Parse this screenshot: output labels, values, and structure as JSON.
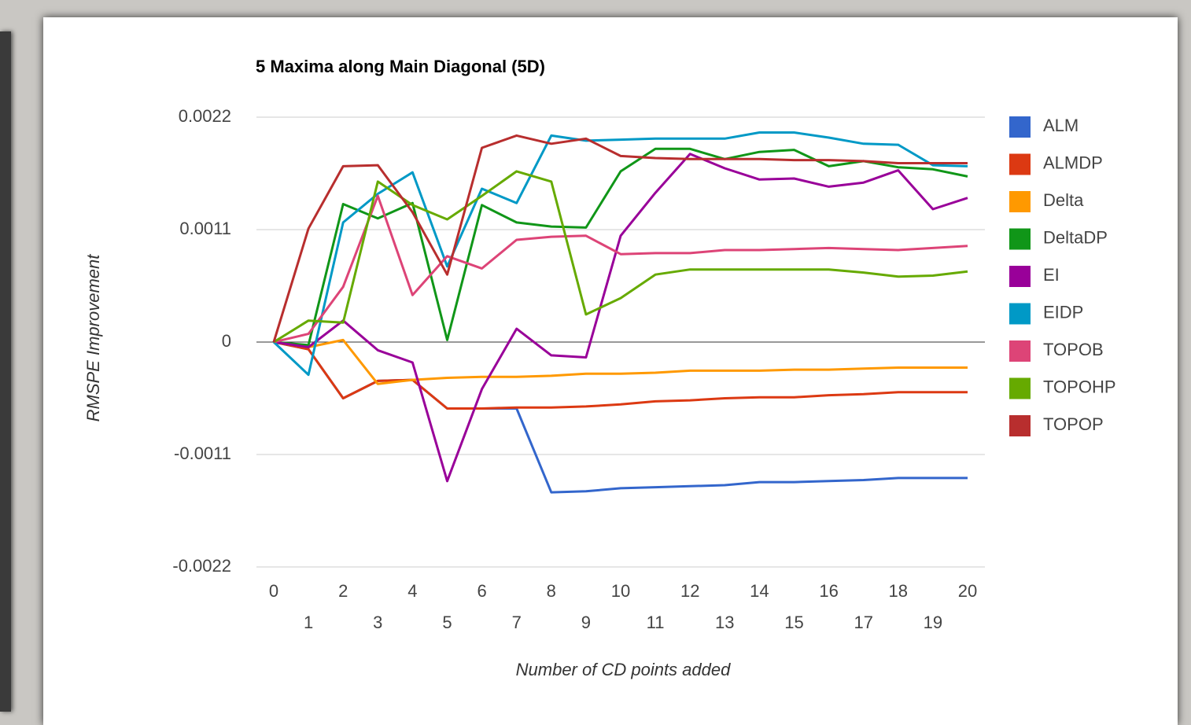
{
  "chart_data": {
    "type": "line",
    "title": "5 Maxima along Main Diagonal (5D)",
    "x_label": "Number of CD points added",
    "y_label": "RMSPE Improvement",
    "x": [
      0,
      1,
      2,
      3,
      4,
      5,
      6,
      7,
      8,
      9,
      10,
      11,
      12,
      13,
      14,
      15,
      16,
      17,
      18,
      19,
      20
    ],
    "xlim": [
      0,
      20
    ],
    "xticks": [
      0,
      1,
      2,
      3,
      4,
      5,
      6,
      7,
      8,
      9,
      10,
      11,
      12,
      13,
      14,
      15,
      16,
      17,
      18,
      19,
      20
    ],
    "ylim": [
      -0.0022,
      0.0022
    ],
    "yticks": [
      0.0022,
      0.0011,
      0,
      -0.0011,
      -0.0022
    ],
    "grid": true,
    "legend": "right",
    "series": [
      {
        "name": "ALM",
        "color": "#3366cc",
        "values": [
          0,
          -7e-05,
          -0.00055,
          -0.00038,
          -0.00037,
          -0.00065,
          -0.00065,
          -0.00065,
          -0.00147,
          -0.00146,
          -0.00143,
          -0.00142,
          -0.00141,
          -0.0014,
          -0.00137,
          -0.00137,
          -0.00136,
          -0.00135,
          -0.00133,
          -0.00133,
          -0.00133
        ]
      },
      {
        "name": "ALMDP",
        "color": "#dc3912",
        "values": [
          0,
          -7e-05,
          -0.00055,
          -0.00038,
          -0.00037,
          -0.00065,
          -0.00065,
          -0.00064,
          -0.00064,
          -0.00063,
          -0.00061,
          -0.00058,
          -0.00057,
          -0.00055,
          -0.00054,
          -0.00054,
          -0.00052,
          -0.00051,
          -0.00049,
          -0.00049,
          -0.00049
        ]
      },
      {
        "name": "Delta",
        "color": "#ff9900",
        "values": [
          0,
          -5e-05,
          2e-05,
          -0.00041,
          -0.00037,
          -0.00035,
          -0.00034,
          -0.00034,
          -0.00033,
          -0.00031,
          -0.00031,
          -0.0003,
          -0.00028,
          -0.00028,
          -0.00028,
          -0.00027,
          -0.00027,
          -0.00026,
          -0.00025,
          -0.00025,
          -0.00025
        ]
      },
      {
        "name": "DeltaDP",
        "color": "#109618",
        "values": [
          0,
          -3e-05,
          0.00135,
          0.00121,
          0.00136,
          2e-05,
          0.00134,
          0.00117,
          0.00113,
          0.00112,
          0.00167,
          0.00189,
          0.00189,
          0.00179,
          0.00186,
          0.00188,
          0.00172,
          0.00177,
          0.00171,
          0.00169,
          0.00162
        ]
      },
      {
        "name": "EI",
        "color": "#990099",
        "values": [
          0,
          -5e-05,
          0.00021,
          -8e-05,
          -0.0002,
          -0.00136,
          -0.00046,
          0.00013,
          -0.00013,
          -0.00015,
          0.00104,
          0.00146,
          0.00184,
          0.0017,
          0.00159,
          0.0016,
          0.00152,
          0.00156,
          0.00168,
          0.0013,
          0.00141
        ]
      },
      {
        "name": "EIDP",
        "color": "#0099c6",
        "values": [
          0,
          -0.00032,
          0.00117,
          0.00145,
          0.00166,
          0.00074,
          0.0015,
          0.00136,
          0.00202,
          0.00197,
          0.00198,
          0.00199,
          0.00199,
          0.00199,
          0.00205,
          0.00205,
          0.002,
          0.00194,
          0.00193,
          0.00173,
          0.00172
        ]
      },
      {
        "name": "TOPOB",
        "color": "#dd4477",
        "values": [
          0,
          8e-05,
          0.00054,
          0.00143,
          0.00046,
          0.00084,
          0.00072,
          0.001,
          0.00103,
          0.00104,
          0.00086,
          0.00087,
          0.00087,
          0.0009,
          0.0009,
          0.00091,
          0.00092,
          0.00091,
          0.0009,
          0.00092,
          0.00094
        ]
      },
      {
        "name": "TOPOHP",
        "color": "#66aa00",
        "values": [
          0,
          0.00021,
          0.00019,
          0.00157,
          0.00134,
          0.0012,
          0.00143,
          0.00167,
          0.00157,
          0.00027,
          0.00043,
          0.00066,
          0.00071,
          0.00071,
          0.00071,
          0.00071,
          0.00071,
          0.00068,
          0.00064,
          0.00065,
          0.00069
        ]
      },
      {
        "name": "TOPOP",
        "color": "#b82e2e",
        "values": [
          0,
          0.00111,
          0.00172,
          0.00173,
          0.00127,
          0.00066,
          0.0019,
          0.00202,
          0.00194,
          0.00199,
          0.00182,
          0.0018,
          0.00179,
          0.00179,
          0.00179,
          0.00178,
          0.00178,
          0.00177,
          0.00175,
          0.00175,
          0.00175
        ]
      }
    ]
  }
}
